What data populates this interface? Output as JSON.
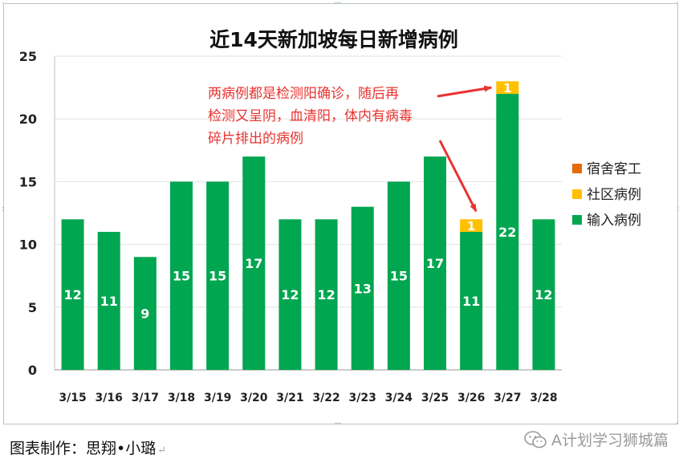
{
  "footer": {
    "credit": "图表制作：思翔•小璐"
  },
  "brand": {
    "label": "A计划学习狮城篇",
    "icon": "wechat-icon"
  },
  "colors": {
    "dorm": "#e46c0a",
    "community": "#ffc000",
    "imported": "#00a650",
    "annotation": "#e8332f"
  },
  "chart_data": {
    "type": "bar",
    "stacked": true,
    "title": "近14天新加坡每日新增病例",
    "categories": [
      "3/15",
      "3/16",
      "3/17",
      "3/18",
      "3/19",
      "3/20",
      "3/21",
      "3/22",
      "3/23",
      "3/24",
      "3/25",
      "3/26",
      "3/27",
      "3/28"
    ],
    "series": [
      {
        "name": "输入病例",
        "values": [
          12,
          11,
          9,
          15,
          15,
          17,
          12,
          12,
          13,
          15,
          17,
          11,
          22,
          12
        ]
      },
      {
        "name": "社区病例",
        "values": [
          0,
          0,
          0,
          0,
          0,
          0,
          0,
          0,
          0,
          0,
          0,
          1,
          1,
          0
        ]
      },
      {
        "name": "宿舍客工",
        "values": [
          0,
          0,
          0,
          0,
          0,
          0,
          0,
          0,
          0,
          0,
          0,
          0,
          0,
          0
        ]
      }
    ],
    "legend_order": [
      "宿舍客工",
      "社区病例",
      "输入病例"
    ],
    "legend_position": "right",
    "ylim": [
      0,
      25
    ],
    "yticks": [
      0,
      5,
      10,
      15,
      20,
      25
    ],
    "grid": true,
    "annotation": {
      "lines": [
        "两病例都是检测阳确诊，随后再",
        "检测又呈阴，血清阳，体内有病毒",
        "碎片排出的病例"
      ],
      "points_to": [
        "3/27",
        "3/26"
      ]
    }
  }
}
